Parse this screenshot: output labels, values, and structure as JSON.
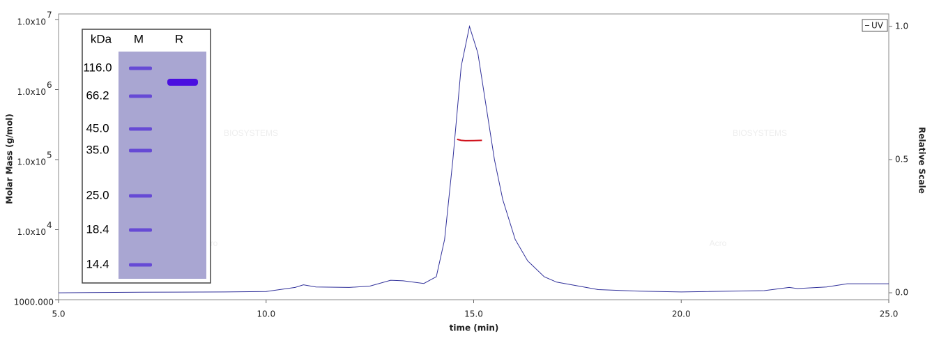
{
  "chart_data": {
    "type": "line",
    "xlabel": "time (min)",
    "ylabel": "Molar Mass (g/mol)",
    "y2label": "Relative Scale",
    "xlim": [
      5,
      25
    ],
    "xticks": [
      {
        "value": 5,
        "label": "5.0"
      },
      {
        "value": 10,
        "label": "10.0"
      },
      {
        "value": 15,
        "label": "15.0"
      },
      {
        "value": 20,
        "label": "20.0"
      },
      {
        "value": 25,
        "label": "25.0"
      }
    ],
    "ylim": [
      1000,
      10000000
    ],
    "ylog": true,
    "yticks": [
      {
        "value": 1000,
        "label": "1000.000"
      },
      {
        "value": 10000,
        "label": "1.0x10",
        "sup": "4"
      },
      {
        "value": 100000,
        "label": "1.0x10",
        "sup": "5"
      },
      {
        "value": 1000000,
        "label": "1.0x10",
        "sup": "6"
      },
      {
        "value": 10000000,
        "label": "1.0x10",
        "sup": "7"
      }
    ],
    "y2lim": [
      -0.026,
      1.026
    ],
    "y2ticks": [
      {
        "value": 0,
        "label": "0.0"
      },
      {
        "value": 0.5,
        "label": "0.5"
      },
      {
        "value": 1,
        "label": "1.0"
      }
    ],
    "legend": "top-right",
    "watermark": [
      "BIOSYSTEMS",
      "BIOSYSTEMS",
      "Acro",
      "Acro"
    ],
    "series": [
      {
        "name": "UV",
        "color": "#30309a",
        "axis": "y2",
        "x": [
          5,
          7,
          9,
          10,
          10.7,
          10.9,
          11.2,
          12,
          12.5,
          13,
          13.3,
          13.8,
          14.1,
          14.3,
          14.5,
          14.7,
          14.9,
          15.1,
          15.3,
          15.5,
          15.7,
          16,
          16.3,
          16.7,
          17,
          18,
          19,
          20,
          22,
          22.6,
          22.8,
          23.5,
          24,
          25
        ],
        "values": [
          0,
          0.002,
          0.003,
          0.005,
          0.02,
          0.03,
          0.022,
          0.02,
          0.025,
          0.047,
          0.045,
          0.035,
          0.06,
          0.2,
          0.5,
          0.85,
          1.0,
          0.9,
          0.7,
          0.5,
          0.35,
          0.2,
          0.12,
          0.06,
          0.04,
          0.012,
          0.006,
          0.003,
          0.008,
          0.02,
          0.016,
          0.022,
          0.034,
          0.034
        ]
      },
      {
        "color": "#d0101a",
        "axis": "y",
        "x": [
          14.6,
          14.7,
          14.8,
          15.0,
          15.2
        ],
        "values": [
          195000,
          188000,
          186000,
          187000,
          188000
        ]
      }
    ]
  },
  "gel": {
    "header": [
      "kDa",
      "M",
      "R"
    ],
    "markers": [
      "116.0",
      "66.2",
      "45.0",
      "35.0",
      "25.0",
      "18.4",
      "14.4"
    ]
  }
}
